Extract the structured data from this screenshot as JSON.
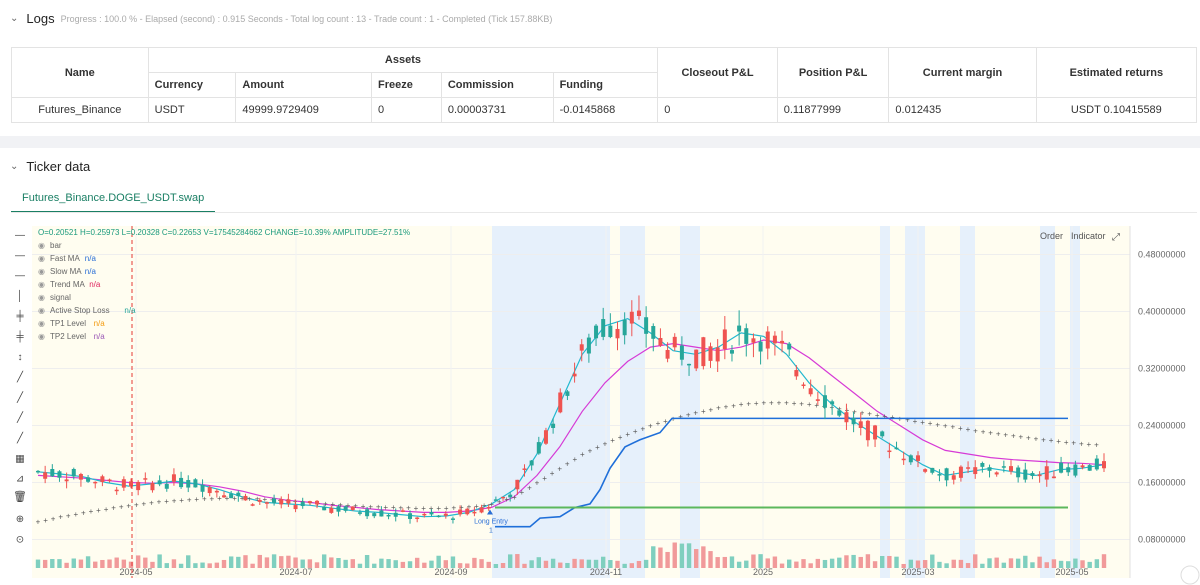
{
  "logs": {
    "title": "Logs",
    "meta": "Progress : 100.0 % - Elapsed (second) : 0.915  Seconds - Total log count : 13 - Trade count : 1 - Completed (Tick 157.88KB)",
    "table": {
      "group_header": "Assets",
      "headers": [
        "Name",
        "Currency",
        "Amount",
        "Freeze",
        "Commission",
        "Funding",
        "Closeout P&L",
        "Position P&L",
        "Current margin",
        "Estimated returns"
      ],
      "row": [
        "Futures_Binance",
        "USDT",
        "49999.9729409",
        "0",
        "0.00003731",
        "-0.0145868",
        "0",
        "0.11877999",
        "0.012435",
        "USDT 0.10415589"
      ]
    }
  },
  "ticker": {
    "title": "Ticker data",
    "tab": "Futures_Binance.DOGE_USDT.swap",
    "ohlc_line": {
      "o": "O=0.20521",
      "h": "H=0.25973",
      "l": "L=0.20328",
      "c": "C=0.22653",
      "v": "V=17545284662",
      "change": "CHANGE=10.39%",
      "amplitude": "AMPLITUDE=27.51%"
    },
    "legend": [
      {
        "name": "bar",
        "value": ""
      },
      {
        "name": "Fast MA",
        "value": "n/a",
        "color": "#2b6fd6"
      },
      {
        "name": "Slow MA",
        "value": "n/a",
        "color": "#2b6fd6"
      },
      {
        "name": "Trend MA",
        "value": "n/a",
        "color": "#e0245e"
      },
      {
        "name": "signal",
        "value": ""
      },
      {
        "name": "Active Stop Loss",
        "value": "n/a",
        "color": "#26a69a"
      },
      {
        "name": "TP1 Level",
        "value": "n/a",
        "color": "#f39c12"
      },
      {
        "name": "TP2 Level",
        "value": "n/a",
        "color": "#9b59b6"
      }
    ],
    "buttons": {
      "order": "Order",
      "indicator": "Indicator"
    },
    "annotation": {
      "label": "Long Entry",
      "qty": "1"
    },
    "colors": {
      "up": "#26a69a",
      "down": "#ef5350",
      "fast_ma": "#22b8cf",
      "slow_ma": "#d63ad6",
      "trend_ma": "#555555",
      "stop": "#1f6fd9",
      "tp": "#5cb85c"
    }
  },
  "chart_data": {
    "type": "line",
    "x_ticks": [
      "2024-05",
      "2024-07",
      "2024-09",
      "2024-11",
      "2025",
      "2025-03",
      "2025-05"
    ],
    "y_ticks": [
      "0.48000000",
      "0.40000000",
      "0.32000000",
      "0.24000000",
      "0.16000000",
      "0.08000000"
    ],
    "ylim": [
      0.04,
      0.52
    ],
    "series": [
      {
        "name": "Fast MA",
        "values": [
          0.175,
          0.172,
          0.168,
          0.16,
          0.155,
          0.158,
          0.162,
          0.158,
          0.15,
          0.14,
          0.132,
          0.13,
          0.128,
          0.124,
          0.12,
          0.118,
          0.115,
          0.112,
          0.113,
          0.118,
          0.13,
          0.15,
          0.2,
          0.27,
          0.34,
          0.38,
          0.39,
          0.37,
          0.345,
          0.34,
          0.35,
          0.37,
          0.365,
          0.34,
          0.3,
          0.27,
          0.245,
          0.225,
          0.205,
          0.185,
          0.17,
          0.175,
          0.18,
          0.175,
          0.17,
          0.178,
          0.18,
          0.185
        ]
      },
      {
        "name": "Slow MA",
        "values": [
          0.17,
          0.168,
          0.166,
          0.163,
          0.16,
          0.159,
          0.16,
          0.158,
          0.154,
          0.148,
          0.14,
          0.135,
          0.132,
          0.128,
          0.125,
          0.122,
          0.12,
          0.118,
          0.118,
          0.12,
          0.125,
          0.14,
          0.17,
          0.21,
          0.26,
          0.3,
          0.33,
          0.35,
          0.355,
          0.35,
          0.345,
          0.35,
          0.36,
          0.355,
          0.335,
          0.31,
          0.285,
          0.26,
          0.24,
          0.22,
          0.205,
          0.2,
          0.195,
          0.192,
          0.19,
          0.188,
          0.187,
          0.185
        ]
      },
      {
        "name": "Trend MA",
        "values": [
          0.105,
          0.112,
          0.118,
          0.123,
          0.128,
          0.132,
          0.135,
          0.137,
          0.138,
          0.138,
          0.137,
          0.135,
          0.132,
          0.13,
          0.128,
          0.126,
          0.125,
          0.124,
          0.124,
          0.126,
          0.13,
          0.14,
          0.16,
          0.18,
          0.2,
          0.215,
          0.228,
          0.24,
          0.25,
          0.258,
          0.265,
          0.27,
          0.272,
          0.272,
          0.27,
          0.266,
          0.26,
          0.255,
          0.25,
          0.245,
          0.24,
          0.235,
          0.23,
          0.226,
          0.222,
          0.218,
          0.215,
          0.212
        ]
      }
    ]
  }
}
